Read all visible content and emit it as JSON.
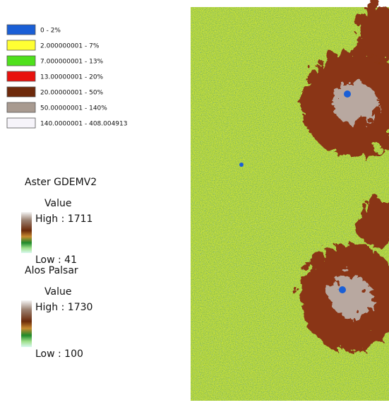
{
  "legend": {
    "classes": [
      {
        "label": "0 - 2%",
        "color": "#1a5fd6"
      },
      {
        "label": "2.000000001 - 7%",
        "color": "#ffff33"
      },
      {
        "label": "7.000000001 - 13%",
        "color": "#4fe01c"
      },
      {
        "label": "13.00000001 - 20%",
        "color": "#e8120e"
      },
      {
        "label": "20.00000001 - 50%",
        "color": "#6e2a0c"
      },
      {
        "label": "50.00000001 - 140%",
        "color": "#a89a90"
      },
      {
        "label": "140.0000001 - 408.004913",
        "color": "#f6f4fa"
      }
    ]
  },
  "ramps": [
    {
      "title": "Aster GDEMV2",
      "field": "Value",
      "high": "High : 1711",
      "low": "Low : 41"
    },
    {
      "title": "Alos Palsar",
      "field": "Value",
      "high": "High : 1730",
      "low": "Low : 100"
    }
  ]
}
